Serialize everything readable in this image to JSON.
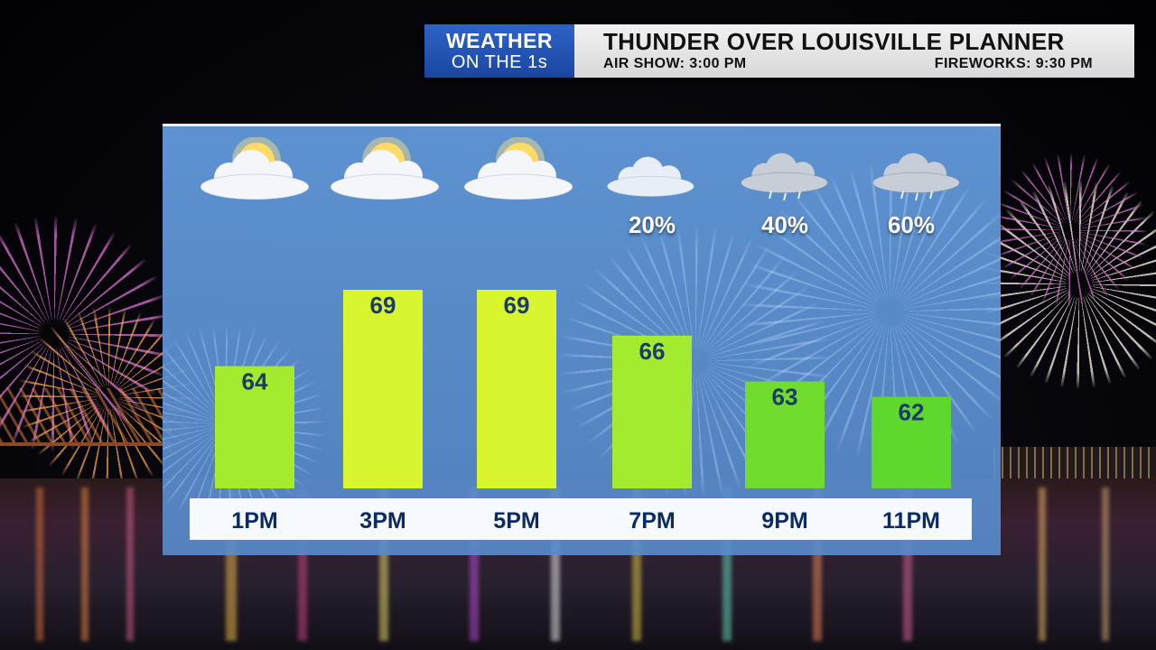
{
  "header": {
    "logo_line1": "WEATHER",
    "logo_line2": "ON THE 1s",
    "title": "THUNDER OVER LOUISVILLE PLANNER",
    "air_show": "AIR SHOW: 3:00 PM",
    "fireworks": "FIREWORKS: 9:30 PM"
  },
  "chart_data": {
    "type": "bar",
    "categories": [
      "1PM",
      "3PM",
      "5PM",
      "7PM",
      "9PM",
      "11PM"
    ],
    "values": [
      64,
      69,
      69,
      66,
      63,
      62
    ],
    "value_labels": [
      "64",
      "69",
      "69",
      "66",
      "63",
      "62"
    ],
    "ylim": [
      56,
      72
    ],
    "rain_chance": [
      "",
      "",
      "",
      "20%",
      "40%",
      "60%"
    ],
    "conditions": [
      "partly-sunny-icon",
      "partly-sunny-icon",
      "partly-sunny-icon",
      "cloudy-icon",
      "showers-icon",
      "showers-icon"
    ],
    "bar_colors": [
      "#a4ea2e",
      "#d8f52e",
      "#d8f52e",
      "#a4ea2e",
      "#6fdc2e",
      "#5fd82e"
    ],
    "title": "",
    "xlabel": "",
    "ylabel": ""
  },
  "colors": {
    "panel": "#5f96d6",
    "axis_text": "#0c2b63",
    "label_text": "#1c3a6e",
    "logo_blue": "#2557b8"
  }
}
